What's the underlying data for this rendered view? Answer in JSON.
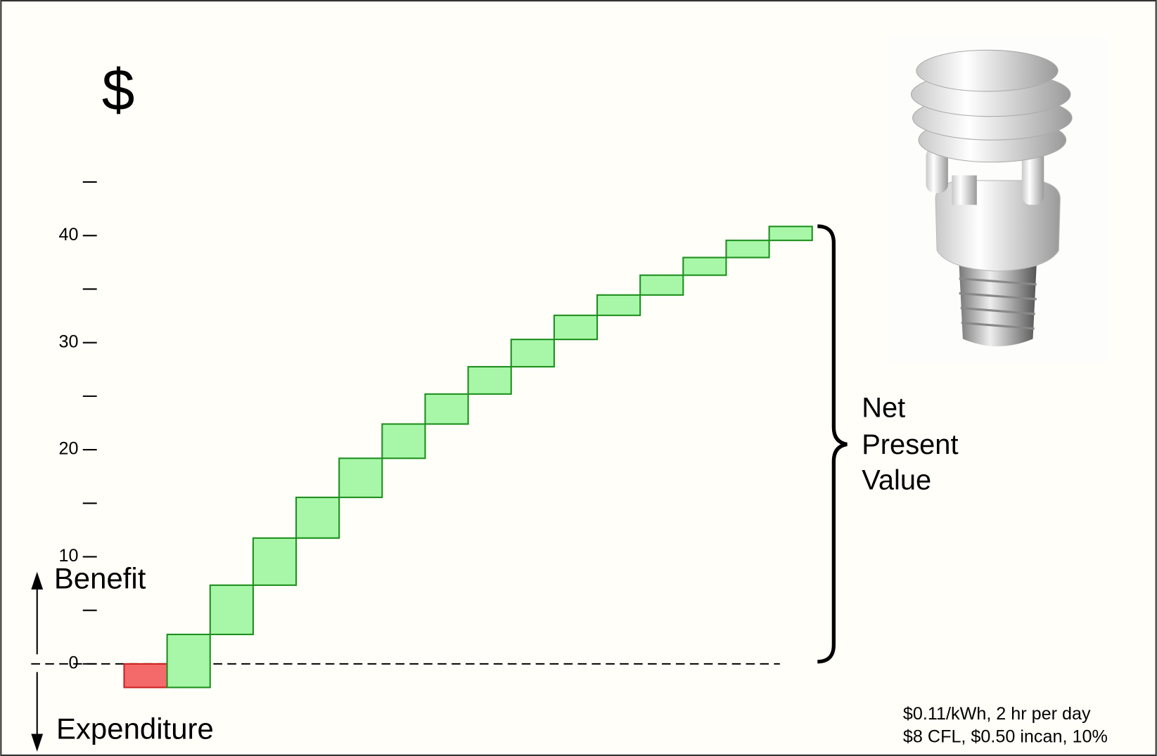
{
  "chart_data": {
    "type": "waterfall",
    "y_label": "$",
    "categories": [
      null,
      null,
      null,
      null,
      null,
      null,
      null,
      null,
      null,
      null,
      null,
      null,
      null,
      null,
      null,
      null
    ],
    "values": [
      -2.2,
      4.95,
      4.6,
      4.4,
      3.8,
      3.65,
      3.2,
      2.8,
      2.55,
      2.55,
      2.25,
      1.9,
      1.85,
      1.65,
      1.6,
      1.3
    ],
    "colors": {
      "increase": "#a8f7a8",
      "decrease": "#f46a6a"
    },
    "ylim": [
      -8.5,
      62
    ],
    "yticks": [
      0,
      10,
      20,
      30,
      40
    ],
    "minor_yticks": [
      5,
      15,
      25,
      35,
      45
    ],
    "grid": false,
    "annotations": {
      "up_label": "Benefit",
      "down_label": "Expenditure",
      "bracket_label": [
        "Net",
        "Present",
        "Value"
      ],
      "notes": [
        "$0.11/kWh, 2 hr per day",
        "$8 CFL, $0.50 incan, 10%"
      ]
    }
  }
}
